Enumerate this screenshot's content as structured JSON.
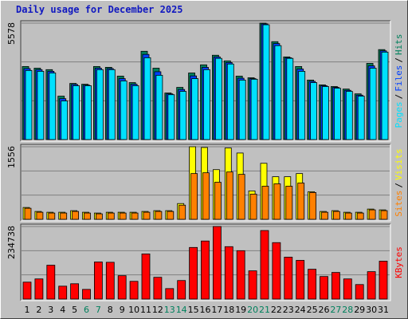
{
  "chart_data": [
    {
      "type": "bar",
      "title": "Daily usage for December 2025",
      "title_color": "#1018c0",
      "ylim": [
        0,
        5578
      ],
      "yticks": [
        5578
      ],
      "series": [
        {
          "name": "Hits",
          "color": "#00805c",
          "values": [
            3500,
            3420,
            3350,
            2080,
            2690,
            2650,
            3500,
            3460,
            3040,
            2730,
            4230,
            3420,
            2230,
            2500,
            3190,
            3580,
            4040,
            3770,
            3040,
            2960,
            5578,
            4690,
            3960,
            3500,
            2850,
            2620,
            2540,
            2420,
            2190,
            3650,
            4310
          ]
        },
        {
          "name": "Files",
          "color": "#0040ff",
          "values": [
            3400,
            3350,
            3270,
            1960,
            2640,
            2610,
            3420,
            3400,
            2920,
            2650,
            4080,
            3250,
            2190,
            2400,
            3050,
            3460,
            3960,
            3690,
            2940,
            2920,
            5540,
            4600,
            3920,
            3380,
            2790,
            2580,
            2500,
            2360,
            2130,
            3530,
            4250
          ]
        },
        {
          "name": "Pages",
          "color": "#00e0ff",
          "values": [
            3310,
            3270,
            3190,
            1850,
            2580,
            2580,
            3350,
            3350,
            2810,
            2580,
            3920,
            3080,
            2150,
            2310,
            2920,
            3350,
            3890,
            3620,
            2850,
            2890,
            5500,
            4500,
            3890,
            3270,
            2730,
            2540,
            2460,
            2310,
            2080,
            3420,
            4190
          ]
        }
      ],
      "legend_separator": "/"
    },
    {
      "type": "bar",
      "ylim": [
        0,
        1556
      ],
      "yticks": [
        1556
      ],
      "series": [
        {
          "name": "Visits",
          "color": "#ffff00",
          "values": [
            254,
            169,
            152,
            152,
            186,
            152,
            135,
            152,
            152,
            152,
            169,
            186,
            186,
            338,
            1556,
            1540,
            1065,
            1530,
            1421,
            609,
            1201,
            913,
            913,
            981,
            592,
            169,
            186,
            152,
            152,
            220,
            203
          ]
        },
        {
          "name": "Sites",
          "color": "#ff8000",
          "values": [
            237,
            152,
            135,
            135,
            169,
            135,
            118,
            135,
            135,
            135,
            152,
            169,
            169,
            304,
            981,
            998,
            795,
            1015,
            964,
            541,
            710,
            761,
            710,
            778,
            575,
            152,
            169,
            135,
            135,
            203,
            186
          ]
        }
      ],
      "legend_separator": "/"
    },
    {
      "type": "bar",
      "ylim": [
        0,
        234738
      ],
      "yticks": [
        234738
      ],
      "categories": [
        "1",
        "2",
        "3",
        "4",
        "5",
        "6",
        "7",
        "8",
        "9",
        "10",
        "11",
        "12",
        "13",
        "14",
        "15",
        "16",
        "17",
        "18",
        "19",
        "20",
        "21",
        "22",
        "23",
        "24",
        "25",
        "26",
        "27",
        "28",
        "29",
        "30",
        "31"
      ],
      "category_colors": [
        "#000000",
        "#000000",
        "#000000",
        "#000000",
        "#000000",
        "#00805c",
        "#00805c",
        "#000000",
        "#000000",
        "#000000",
        "#000000",
        "#000000",
        "#00805c",
        "#00805c",
        "#000000",
        "#000000",
        "#000000",
        "#000000",
        "#000000",
        "#00805c",
        "#00805c",
        "#000000",
        "#000000",
        "#000000",
        "#000000",
        "#000000",
        "#00805c",
        "#00805c",
        "#000000",
        "#000000",
        "#000000"
      ],
      "series": [
        {
          "name": "KBytes",
          "color": "#ff0000",
          "values": [
            54770,
            65200,
            109540,
            41730,
            49550,
            31300,
            119980,
            119000,
            75640,
            57380,
            146060,
            70420,
            33910,
            59990,
            166920,
            187790,
            234738,
            169530,
            156490,
            91290,
            221690,
            182570,
            135630,
            125190,
            96500,
            73030,
            86070,
            65200,
            46950,
            88680,
            122590
          ]
        }
      ]
    }
  ]
}
